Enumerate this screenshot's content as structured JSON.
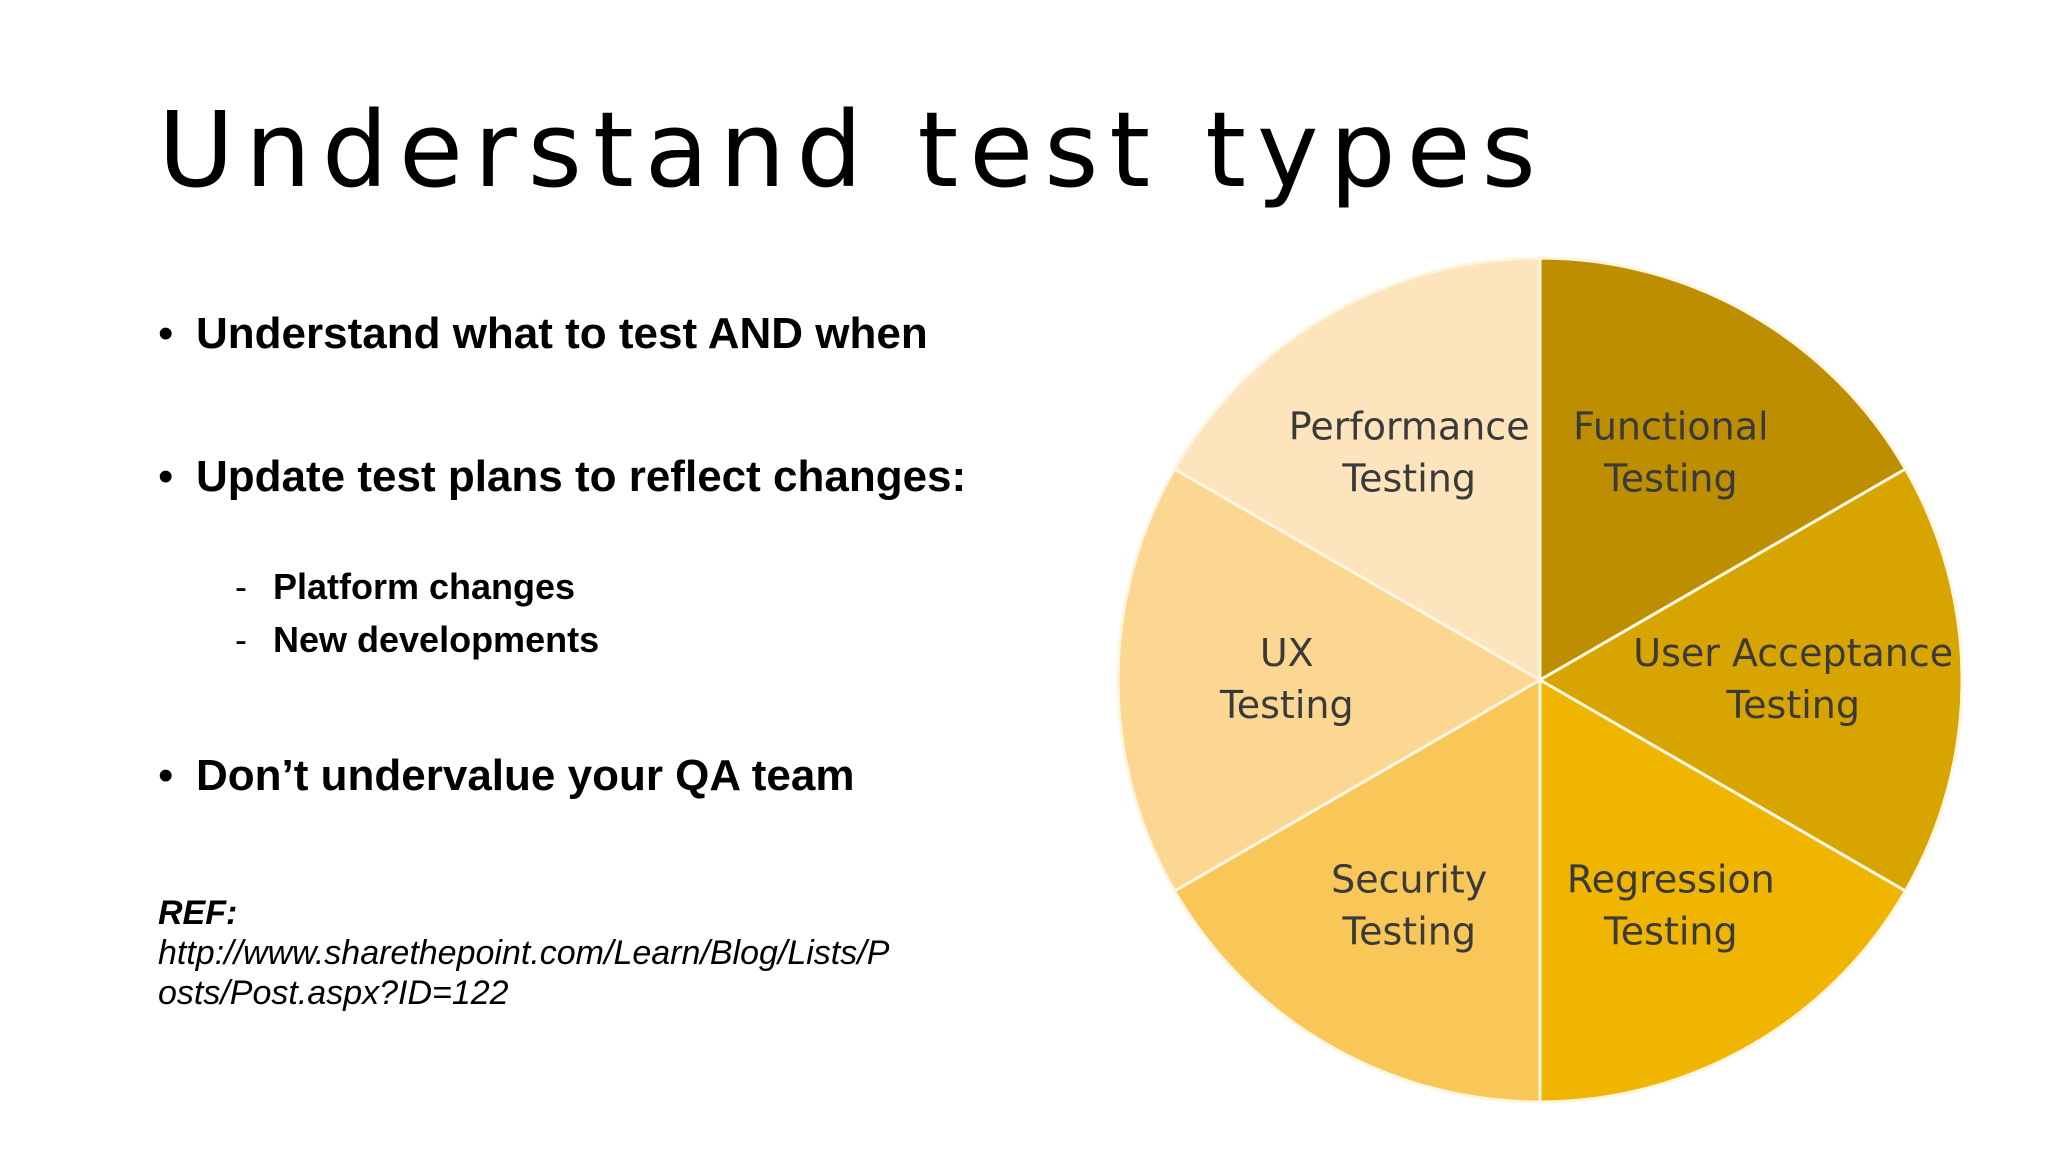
{
  "title": "Understand test types",
  "bullets": [
    {
      "marker": "•",
      "text": "Understand what to test AND when"
    },
    {
      "marker": "•",
      "text": "Update test plans to reflect changes:"
    },
    {
      "marker": "•",
      "text": "Don’t undervalue your QA team"
    }
  ],
  "sub_bullets": [
    {
      "marker": "-",
      "text": "Platform changes"
    },
    {
      "marker": "-",
      "text": "New developments"
    }
  ],
  "reference": {
    "label": "REF:",
    "url_line_1": "http://www.sharethepoint.com/Learn/Blog/Lists/P",
    "url_line_2": "osts/Post.aspx?ID=122"
  },
  "wheel": {
    "segments": [
      {
        "line1": "Functional",
        "line2": "Testing",
        "color": "#BD8F00"
      },
      {
        "line1": "User Acceptance",
        "line2": "Testing",
        "color": "#D8A400"
      },
      {
        "line1": "Regression",
        "line2": "Testing",
        "color": "#F0B500"
      },
      {
        "line1": "Security",
        "line2": "Testing",
        "color": "#F8C757"
      },
      {
        "line1": "UX",
        "line2": "Testing",
        "color": "#FCD792"
      },
      {
        "line1": "Performance",
        "line2": "Testing",
        "color": "#FDE4BC"
      }
    ],
    "divider_color": "#FFF6E2"
  }
}
